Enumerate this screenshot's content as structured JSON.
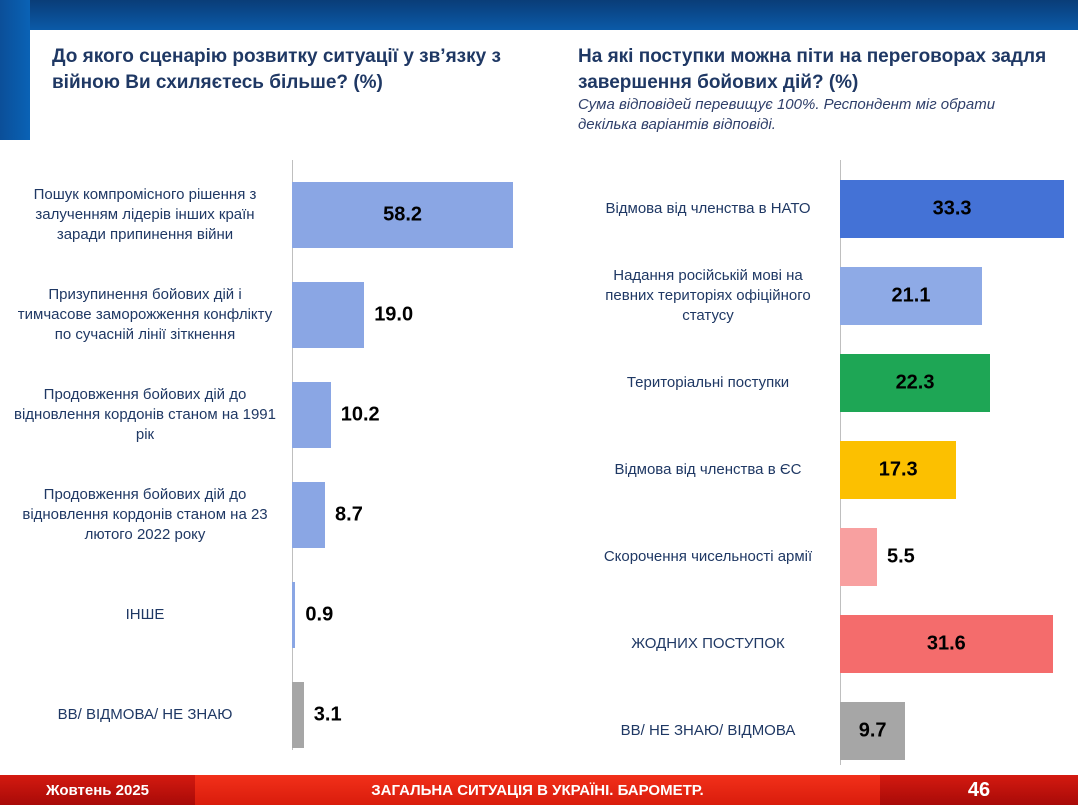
{
  "left": {
    "title": "До якого сценарію розвитку ситуації у зв’язку з війною Ви схиляєтесь більше? (%)"
  },
  "right": {
    "title": "На які поступки можна піти на переговорах задля завершення бойових дій? (%)",
    "note": "Сума відповідей перевищує 100%. Респондент міг обрати декілька варіантів відповіді."
  },
  "chart_data": [
    {
      "type": "bar",
      "orientation": "horizontal",
      "categories": [
        "Пошук компромісного рішення з залученням лідерів інших країн заради припинення війни",
        "Призупинення бойових дій і тимчасове заморожження конфлікту по сучасній лінії зіткнення",
        "Продовження бойових дій до відновлення кордонів станом на 1991 рік",
        "Продовження бойових дій до відновлення кордонів станом на 23 лютого 2022 року",
        "ІНШЕ",
        "ВВ/ ВІДМОВА/ НЕ ЗНАЮ"
      ],
      "values": [
        58.2,
        19.0,
        10.2,
        8.7,
        0.9,
        3.1
      ],
      "labels": [
        "58.2",
        "19.0",
        "10.2",
        "8.7",
        "0.9",
        "3.1"
      ],
      "colors": [
        "#8aa6e4",
        "#8aa6e4",
        "#8aa6e4",
        "#8aa6e4",
        "#8aa6e4",
        "#a6a6a6"
      ]
    },
    {
      "type": "bar",
      "orientation": "horizontal",
      "categories": [
        "Відмова від членства в НАТО",
        "Надання російській мові на певних територіях офіційного статусу",
        "Територіальні поступки",
        "Відмова від членства в ЄС",
        "Скорочення чисельності армії",
        "ЖОДНИХ ПОСТУПОК",
        "ВВ/ НЕ ЗНАЮ/ ВІДМОВА"
      ],
      "values": [
        33.3,
        21.1,
        22.3,
        17.3,
        5.5,
        31.6,
        9.7
      ],
      "labels": [
        "33.3",
        "21.1",
        "22.3",
        "17.3",
        "5.5",
        "31.6",
        "9.7"
      ],
      "colors": [
        "#4472d6",
        "#8eaae6",
        "#1ea655",
        "#fcc000",
        "#f8a0a0",
        "#f46c6c",
        "#a6a6a6"
      ]
    }
  ],
  "footer": {
    "date": "Жовтень 2025",
    "title": "ЗАГАЛЬНА СИТУАЦІЯ В УКРАЇНІ. БАРОМЕТР.",
    "page": "46"
  }
}
